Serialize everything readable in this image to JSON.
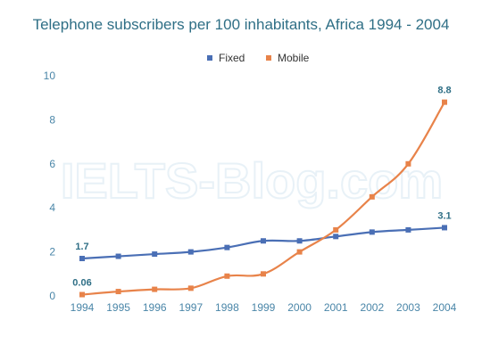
{
  "watermark": "IELTS-Blog.com",
  "chart_data": {
    "type": "line",
    "title": "Telephone subscribers per 100 inhabitants, Africa 1994 - 2004",
    "xlabel": "",
    "ylabel": "",
    "x": [
      "1994",
      "1995",
      "1996",
      "1997",
      "1998",
      "1999",
      "2000",
      "2001",
      "2002",
      "2003",
      "2004"
    ],
    "ylim": [
      0,
      10
    ],
    "yticks": [
      "0",
      "2",
      "4",
      "6",
      "8",
      "10"
    ],
    "grid": false,
    "legend_position": "top-center",
    "series": [
      {
        "name": "Fixed",
        "color": "#4a6fb5",
        "values": [
          1.7,
          1.8,
          1.9,
          2.0,
          2.2,
          2.5,
          2.5,
          2.7,
          2.9,
          3.0,
          3.1
        ]
      },
      {
        "name": "Mobile",
        "color": "#e8834a",
        "values": [
          0.06,
          0.2,
          0.3,
          0.35,
          0.9,
          1.0,
          2.0,
          3.0,
          4.5,
          6.0,
          8.8
        ]
      }
    ],
    "annotations": [
      {
        "text": "1.7",
        "series": 0,
        "index": 0
      },
      {
        "text": "0.06",
        "series": 1,
        "index": 0
      },
      {
        "text": "3.1",
        "series": 0,
        "index": 10
      },
      {
        "text": "8.8",
        "series": 1,
        "index": 10
      }
    ]
  }
}
